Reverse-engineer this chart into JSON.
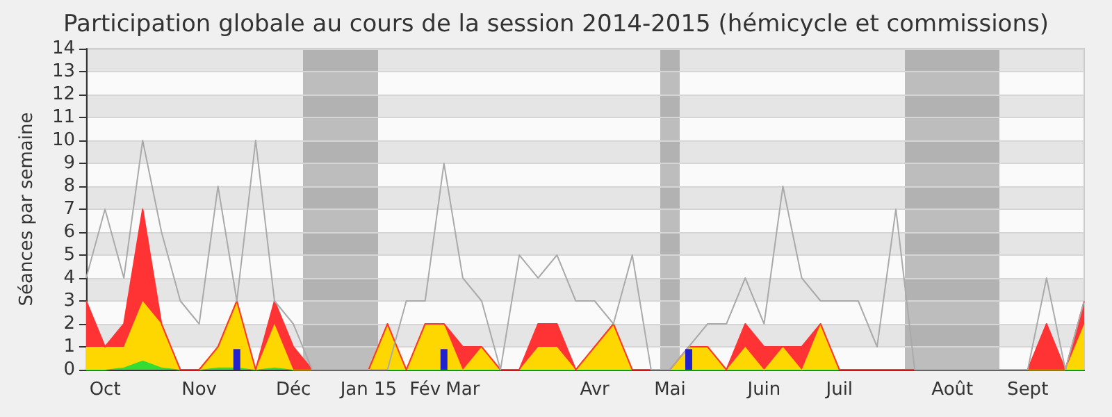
{
  "chart_data": {
    "type": "area",
    "title": "Participation globale au cours de la session 2014-2015 (hémicycle et commissions)",
    "ylabel": "Séances par semaine",
    "categories": [
      null,
      "Oct",
      null,
      null,
      null,
      null,
      "Nov",
      null,
      null,
      null,
      null,
      "Déc",
      null,
      null,
      null,
      "Jan 15",
      null,
      null,
      "Fév",
      null,
      "Mar",
      null,
      null,
      null,
      null,
      null,
      null,
      "Avr",
      null,
      null,
      null,
      "Mai",
      null,
      null,
      null,
      null,
      "Juin",
      null,
      null,
      null,
      "Juil",
      null,
      null,
      null,
      null,
      null,
      "Août",
      null,
      null,
      null,
      "Sept",
      null,
      null,
      null
    ],
    "stacked": true,
    "series": [
      {
        "color": "#33dd33",
        "values": [
          0,
          0,
          0.1,
          0.4,
          0.1,
          0,
          0,
          0.1,
          0.1,
          0,
          0.1,
          0,
          0,
          0,
          0,
          0,
          0,
          0,
          0,
          0,
          0,
          0,
          0,
          0,
          0,
          0,
          0,
          0,
          0,
          0,
          0,
          0,
          0,
          0,
          0,
          0,
          0,
          0,
          0,
          0,
          0,
          0,
          0,
          0,
          0,
          0,
          0,
          0,
          0,
          0,
          0,
          0,
          0,
          0
        ]
      },
      {
        "color": "#ffd700",
        "values": [
          1,
          1,
          0.9,
          2.6,
          1.9,
          0,
          0,
          0.9,
          2.9,
          0,
          1.9,
          0,
          0,
          0,
          0,
          0,
          2,
          0,
          2,
          2,
          0,
          1,
          0,
          0,
          1,
          1,
          0,
          1,
          2,
          0,
          0,
          0,
          1,
          1,
          0,
          1,
          0,
          1,
          0,
          2,
          0,
          0,
          0,
          0,
          0,
          0,
          0,
          0,
          0,
          0,
          0,
          0,
          0,
          2
        ]
      },
      {
        "color": "#ff3333",
        "values": [
          2,
          0,
          1,
          4,
          0,
          0,
          0,
          0,
          0,
          0,
          1,
          1,
          0,
          0,
          0,
          0,
          0,
          0,
          0,
          0,
          1,
          0,
          0,
          0,
          1,
          1,
          0,
          0,
          0,
          0,
          0,
          0,
          0,
          0,
          0,
          1,
          1,
          0,
          1,
          0,
          0,
          0,
          0,
          0,
          0,
          0,
          0,
          0,
          0,
          0,
          0,
          2,
          0,
          1
        ]
      },
      {
        "type": "line",
        "color": "#aaaaaa",
        "values": [
          4,
          7,
          4,
          10,
          6,
          3,
          2,
          8,
          3,
          10,
          3,
          2,
          0,
          0,
          0,
          0,
          0,
          3,
          3,
          9,
          4,
          3,
          0,
          5,
          4,
          5,
          3,
          3,
          2,
          5,
          0,
          0,
          1,
          2,
          2,
          4,
          2,
          8,
          4,
          3,
          3,
          3,
          1,
          7,
          0,
          0,
          0,
          0,
          0,
          0,
          0,
          4,
          0,
          3
        ]
      },
      {
        "type": "bar",
        "color": "#2222cc",
        "values": [
          null,
          null,
          null,
          null,
          null,
          null,
          null,
          null,
          0.9,
          null,
          null,
          null,
          null,
          null,
          null,
          null,
          null,
          null,
          null,
          0.9,
          null,
          null,
          null,
          null,
          null,
          null,
          null,
          null,
          null,
          null,
          null,
          null,
          0.9,
          null,
          null,
          null,
          null,
          null,
          null,
          null,
          null,
          null,
          null,
          null,
          null,
          null,
          null,
          null,
          null,
          null,
          null,
          null,
          null,
          null
        ]
      }
    ],
    "ylim": [
      0,
      14
    ],
    "yticks": [
      0,
      1,
      2,
      3,
      4,
      5,
      6,
      7,
      8,
      9,
      10,
      11,
      12,
      13,
      14
    ],
    "grid": "y",
    "marker": "none"
  }
}
